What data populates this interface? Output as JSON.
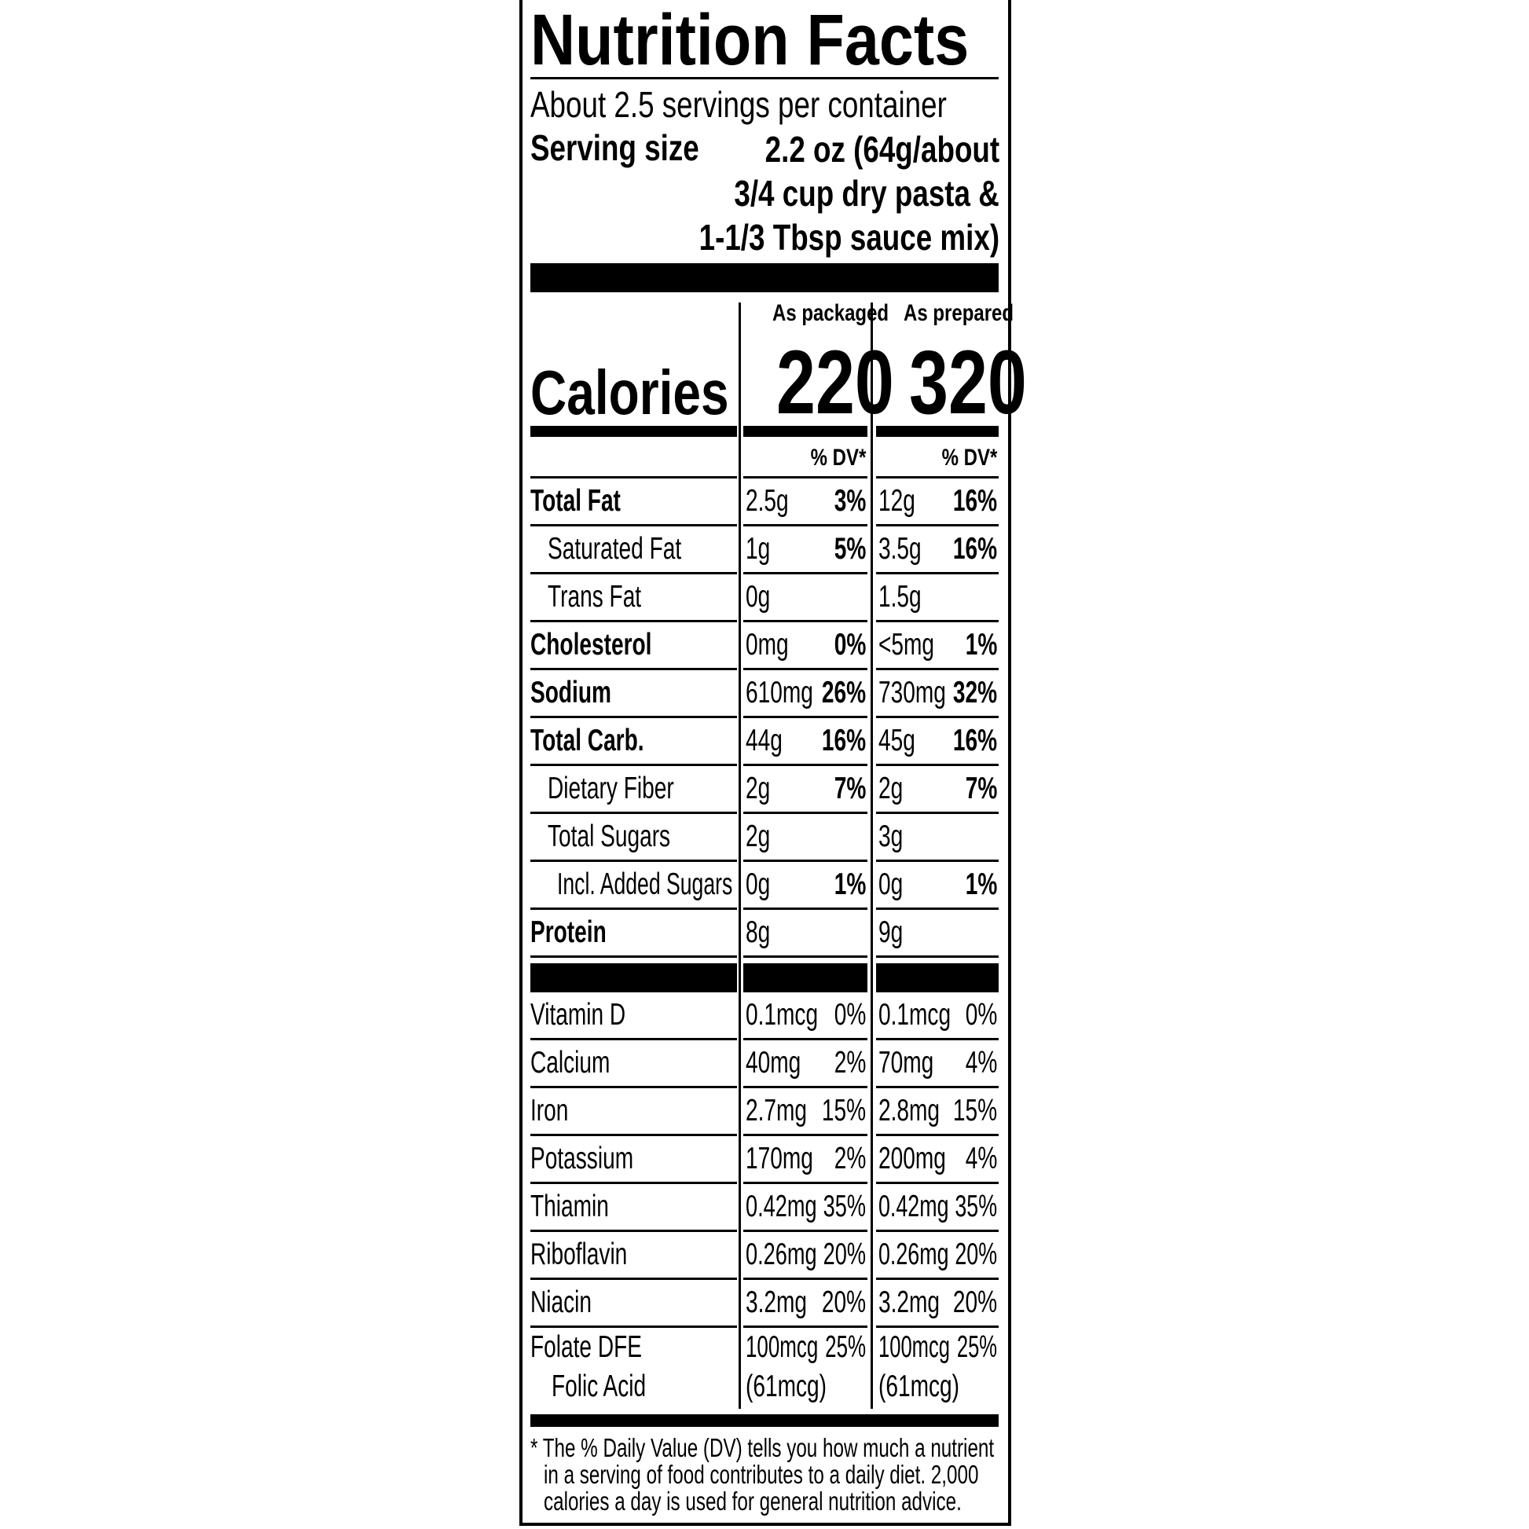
{
  "title": "Nutrition Facts",
  "servings_per_container": "About 2.5 servings per container",
  "serving_size": {
    "label": "Serving size",
    "lines": [
      "2.2 oz (64g/about",
      "3/4 cup dry pasta &",
      "1-1/3 Tbsp sauce mix)"
    ]
  },
  "columns": {
    "packaged": "As packaged",
    "prepared": "As prepared",
    "dv_header": "% DV*"
  },
  "calories": {
    "label": "Calories",
    "packaged": "220",
    "prepared": "320"
  },
  "nutrients": [
    {
      "label": "Total Fat",
      "level": 0,
      "bold": true,
      "pk_amt": "2.5g",
      "pk_dv": "3%",
      "pr_amt": "12g",
      "pr_dv": "16%"
    },
    {
      "label": "Saturated Fat",
      "level": 1,
      "bold": false,
      "pk_amt": "1g",
      "pk_dv": "5%",
      "pr_amt": "3.5g",
      "pr_dv": "16%"
    },
    {
      "label": "Trans Fat",
      "level": 1,
      "bold": false,
      "pk_amt": "0g",
      "pk_dv": "",
      "pr_amt": "1.5g",
      "pr_dv": ""
    },
    {
      "label": "Cholesterol",
      "level": 0,
      "bold": true,
      "pk_amt": "0mg",
      "pk_dv": "0%",
      "pr_amt": "<5mg",
      "pr_dv": "1%"
    },
    {
      "label": "Sodium",
      "level": 0,
      "bold": true,
      "pk_amt": "610mg",
      "pk_dv": "26%",
      "pr_amt": "730mg",
      "pr_dv": "32%"
    },
    {
      "label": "Total Carb.",
      "level": 0,
      "bold": true,
      "pk_amt": "44g",
      "pk_dv": "16%",
      "pr_amt": "45g",
      "pr_dv": "16%"
    },
    {
      "label": "Dietary Fiber",
      "level": 1,
      "bold": false,
      "pk_amt": "2g",
      "pk_dv": "7%",
      "pr_amt": "2g",
      "pr_dv": "7%"
    },
    {
      "label": "Total Sugars",
      "level": 1,
      "bold": false,
      "pk_amt": "2g",
      "pk_dv": "",
      "pr_amt": "3g",
      "pr_dv": ""
    },
    {
      "label": "Incl. Added Sugars",
      "level": 2,
      "bold": false,
      "pk_amt": "0g",
      "pk_dv": "1%",
      "pr_amt": "0g",
      "pr_dv": "1%"
    },
    {
      "label": "Protein",
      "level": 0,
      "bold": true,
      "pk_amt": "8g",
      "pk_dv": "",
      "pr_amt": "9g",
      "pr_dv": ""
    }
  ],
  "vitamins": [
    {
      "label": "Vitamin D",
      "pk_amt": "0.1mcg",
      "pk_dv": "0%",
      "pr_amt": "0.1mcg",
      "pr_dv": "0%"
    },
    {
      "label": "Calcium",
      "pk_amt": "40mg",
      "pk_dv": "2%",
      "pr_amt": "70mg",
      "pr_dv": "4%"
    },
    {
      "label": "Iron",
      "pk_amt": "2.7mg",
      "pk_dv": "15%",
      "pr_amt": "2.8mg",
      "pr_dv": "15%"
    },
    {
      "label": "Potassium",
      "pk_amt": "170mg",
      "pk_dv": "2%",
      "pr_amt": "200mg",
      "pr_dv": "4%"
    },
    {
      "label": "Thiamin",
      "pk_amt": "0.42mg",
      "pk_dv": "35%",
      "pr_amt": "0.42mg",
      "pr_dv": "35%"
    },
    {
      "label": "Riboflavin",
      "pk_amt": "0.26mg",
      "pk_dv": "20%",
      "pr_amt": "0.26mg",
      "pr_dv": "20%"
    },
    {
      "label": "Niacin",
      "pk_amt": "3.2mg",
      "pk_dv": "20%",
      "pr_amt": "3.2mg",
      "pr_dv": "20%"
    }
  ],
  "folate": {
    "label": "Folate DFE",
    "sub_label": "Folic Acid",
    "pk_amt": "100mcg",
    "pk_dv": "25%",
    "pk_sub": "(61mcg)",
    "pr_amt": "100mcg",
    "pr_dv": "25%",
    "pr_sub": "(61mcg)"
  },
  "footnote": [
    "* The % Daily Value (DV) tells you how much a nutrient",
    "in a serving of food contributes to a daily diet. 2,000",
    "calories a day is used for general nutrition advice."
  ]
}
